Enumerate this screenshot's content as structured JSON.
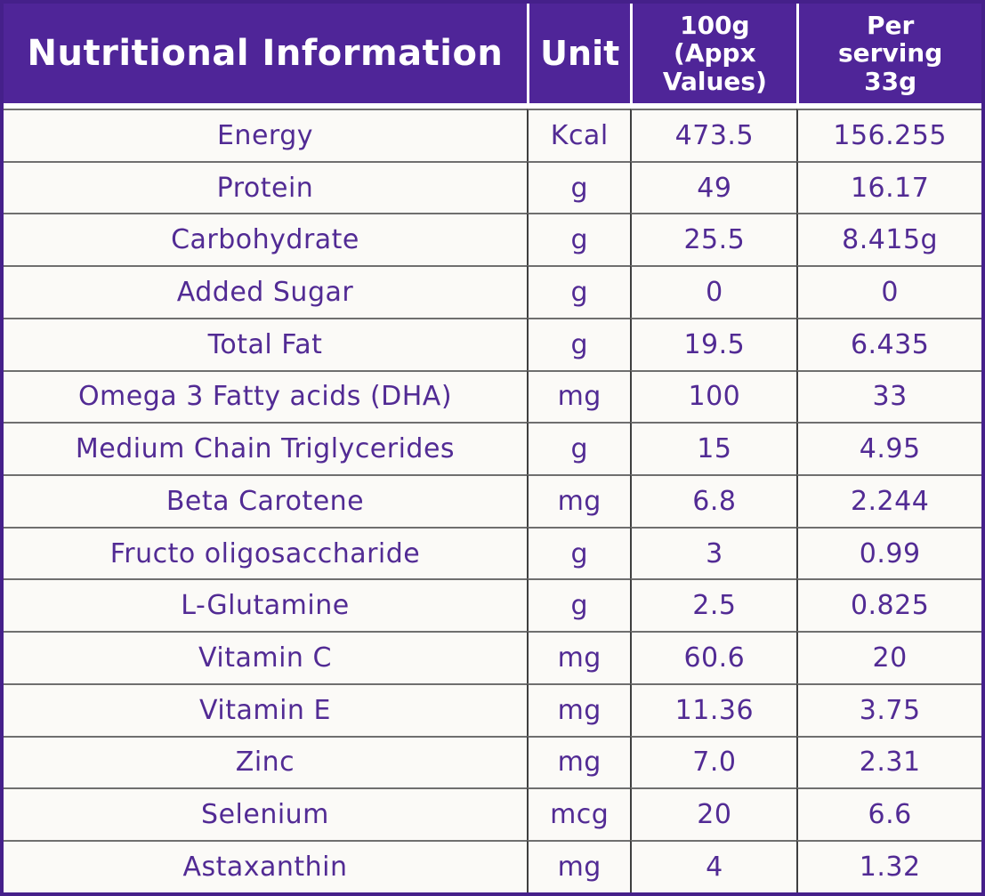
{
  "table": {
    "title": "Nutritional Information",
    "headers": [
      "Nutritional Information",
      "Unit",
      "100g\n(Appx\nValues)",
      "Per\nserving\n33g"
    ],
    "rows": [
      {
        "name": "Energy",
        "unit": "Kcal",
        "per100g": "473.5",
        "per_serving": "156.255"
      },
      {
        "name": "Protein",
        "unit": "g",
        "per100g": "49",
        "per_serving": "16.17"
      },
      {
        "name": "Carbohydrate",
        "unit": "g",
        "per100g": "25.5",
        "per_serving": "8.415g"
      },
      {
        "name": "Added Sugar",
        "unit": "g",
        "per100g": "0",
        "per_serving": "0"
      },
      {
        "name": "Total Fat",
        "unit": "g",
        "per100g": "19.5",
        "per_serving": "6.435"
      },
      {
        "name": "Omega 3 Fatty acids (DHA)",
        "unit": "mg",
        "per100g": "100",
        "per_serving": "33"
      },
      {
        "name": "Medium Chain Triglycerides",
        "unit": "g",
        "per100g": "15",
        "per_serving": "4.95"
      },
      {
        "name": "Beta Carotene",
        "unit": "mg",
        "per100g": "6.8",
        "per_serving": "2.244"
      },
      {
        "name": "Fructo oligosaccharide",
        "unit": "g",
        "per100g": "3",
        "per_serving": "0.99"
      },
      {
        "name": "L-Glutamine",
        "unit": "g",
        "per100g": "2.5",
        "per_serving": "0.825"
      },
      {
        "name": "Vitamin C",
        "unit": "mg",
        "per100g": "60.6",
        "per_serving": "20"
      },
      {
        "name": "Vitamin E",
        "unit": "mg",
        "per100g": "11.36",
        "per_serving": "3.75"
      },
      {
        "name": "Zinc",
        "unit": "mg",
        "per100g": "7.0",
        "per_serving": "2.31"
      },
      {
        "name": "Selenium",
        "unit": "mcg",
        "per100g": "20",
        "per_serving": "6.6"
      },
      {
        "name": "Astaxanthin",
        "unit": "mg",
        "per100g": "4",
        "per_serving": "1.32"
      }
    ]
  },
  "colors": {
    "header_bg": "#4f2598",
    "header_text": "#ffffff",
    "body_text": "#522b94",
    "outer_border": "#45208a",
    "grid_horizontal": "#6f6f6f",
    "grid_vertical": "#3f3f3f",
    "body_bg": "#fbfaf7"
  }
}
